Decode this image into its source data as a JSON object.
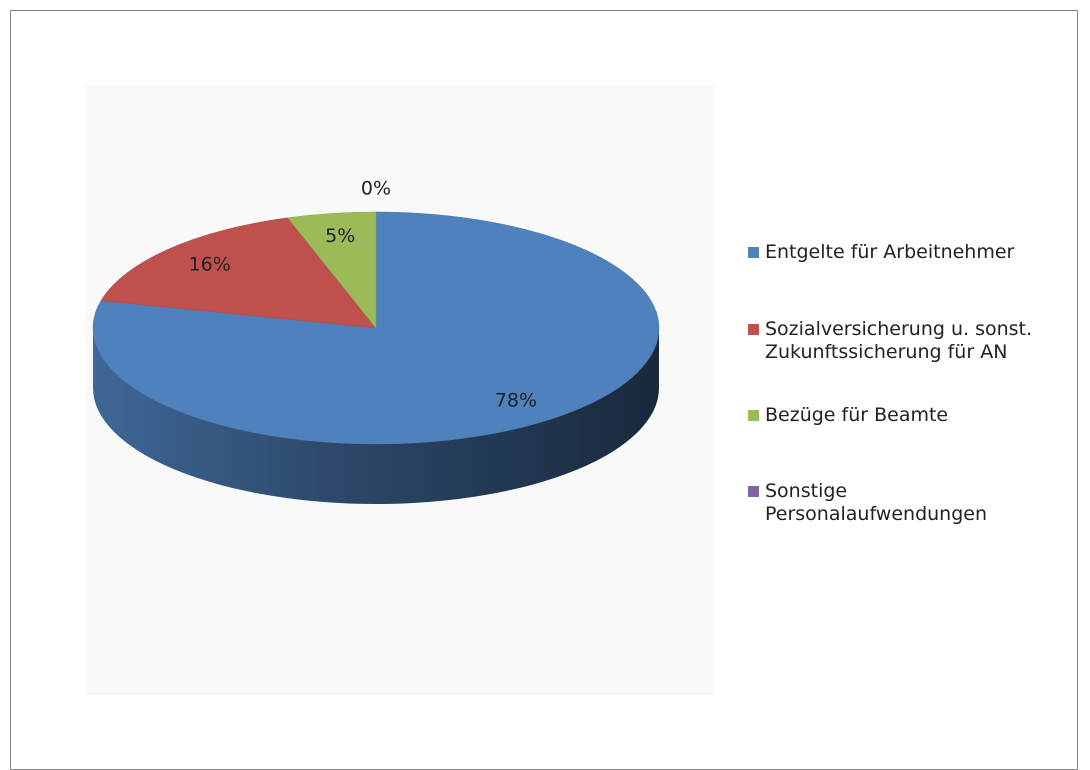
{
  "chart_data": {
    "type": "pie",
    "categories": [
      "Entgelte für Arbeitnehmer",
      "Sozialversicherung u. sonst. Zukunftssicherung für AN",
      "Bezüge für Beamte",
      "Sonstige Personalaufwendungen"
    ],
    "values": [
      78,
      16,
      5,
      0
    ],
    "value_labels": [
      "78%",
      "16%",
      "5%",
      "0%"
    ],
    "colors": [
      "#4f81bd",
      "#c0504d",
      "#9bbb59",
      "#8064a2"
    ],
    "legend": "right"
  }
}
